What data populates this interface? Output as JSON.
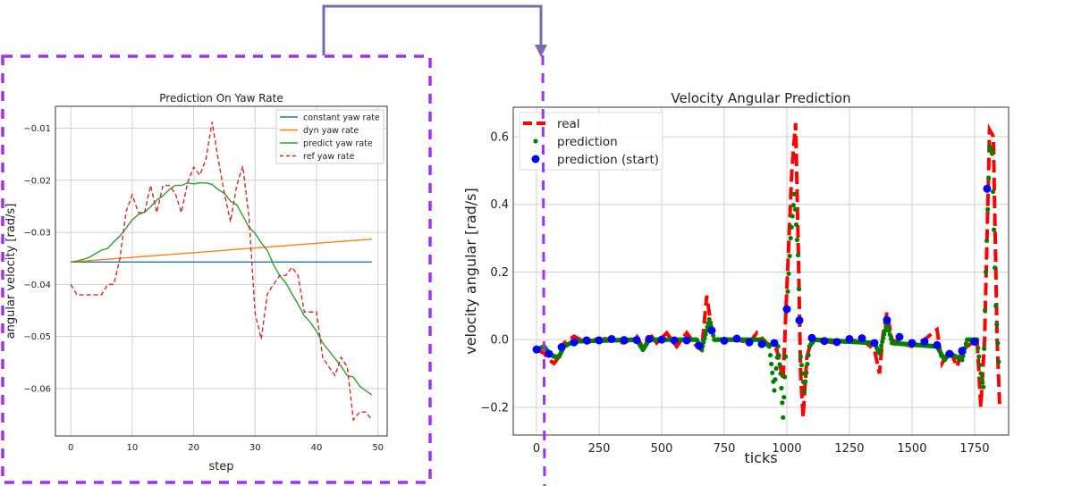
{
  "chart_data": [
    {
      "type": "line",
      "title": "Prediction On Yaw Rate",
      "xlabel": "step",
      "ylabel": "angular velocity [rad/s]",
      "xlim": [
        -2.5,
        51.5
      ],
      "ylim": [
        -0.0691,
        -0.0058
      ],
      "xticks": [
        0,
        10,
        20,
        30,
        40,
        50
      ],
      "yticks": [
        -0.01,
        -0.02,
        -0.03,
        -0.04,
        -0.05,
        -0.06
      ],
      "ytick_labels": [
        "−0.01",
        "−0.02",
        "−0.03",
        "−0.04",
        "−0.05",
        "−0.06"
      ],
      "grid": true,
      "legend": "top-right",
      "series": [
        {
          "name": "constant yaw rate",
          "color": "#1f77b4",
          "style": "solid",
          "linear": [
            -0.0357,
            -0.0357
          ]
        },
        {
          "name": "dyn yaw rate",
          "color": "#ff7f0e",
          "style": "solid",
          "linear": [
            -0.0357,
            -0.0313
          ]
        },
        {
          "name": "predict yaw rate",
          "color": "#2ca02c",
          "style": "solid",
          "values": [
            -0.0357,
            -0.0355,
            -0.0352,
            -0.0348,
            -0.0341,
            -0.0334,
            -0.0331,
            -0.0318,
            -0.0307,
            -0.0292,
            -0.0276,
            -0.0266,
            -0.0261,
            -0.0251,
            -0.0238,
            -0.023,
            -0.0218,
            -0.021,
            -0.021,
            -0.0205,
            -0.0207,
            -0.0205,
            -0.0205,
            -0.0208,
            -0.0218,
            -0.0225,
            -0.024,
            -0.0247,
            -0.0268,
            -0.029,
            -0.0302,
            -0.032,
            -0.0335,
            -0.0362,
            -0.0383,
            -0.0397,
            -0.0418,
            -0.0438,
            -0.046,
            -0.0473,
            -0.049,
            -0.0512,
            -0.0527,
            -0.0542,
            -0.0557,
            -0.0575,
            -0.0578,
            -0.0595,
            -0.0604,
            -0.0612
          ]
        },
        {
          "name": "ref yaw rate",
          "color": "#d62728",
          "style": "dashed",
          "values": [
            -0.04,
            -0.042,
            -0.042,
            -0.042,
            -0.042,
            -0.042,
            -0.04,
            -0.04,
            -0.035,
            -0.026,
            -0.0228,
            -0.0262,
            -0.0262,
            -0.021,
            -0.0262,
            -0.021,
            -0.021,
            -0.0225,
            -0.0262,
            -0.0205,
            -0.0175,
            -0.019,
            -0.016,
            -0.0088,
            -0.016,
            -0.0225,
            -0.028,
            -0.021,
            -0.0173,
            -0.027,
            -0.0455,
            -0.0505,
            -0.0418,
            -0.04,
            -0.0383,
            -0.0383,
            -0.0367,
            -0.0383,
            -0.0453,
            -0.0453,
            -0.0453,
            -0.054,
            -0.0558,
            -0.0575,
            -0.054,
            -0.0558,
            -0.066,
            -0.0645,
            -0.0645,
            -0.066
          ]
        }
      ]
    },
    {
      "type": "line",
      "title": "Velocity Angular Prediction",
      "xlabel": "ticks",
      "ylabel": "velocity angular [rad/s]",
      "xlim": [
        -93,
        1886
      ],
      "ylim": [
        -0.282,
        0.687
      ],
      "xticks": [
        0,
        250,
        500,
        750,
        1000,
        1250,
        1500,
        1750
      ],
      "yticks": [
        -0.2,
        0.0,
        0.2,
        0.4,
        0.6
      ],
      "ytick_labels": [
        "−0.2",
        "0.0",
        "0.2",
        "0.4",
        "0.6"
      ],
      "grid": true,
      "legend": "top-left",
      "series": [
        {
          "name": "real",
          "color": "#ff0000",
          "style": "dashed",
          "points": [
            [
              0,
              -0.03
            ],
            [
              30,
              -0.04
            ],
            [
              50,
              -0.06
            ],
            [
              70,
              -0.07
            ],
            [
              90,
              -0.05
            ],
            [
              110,
              -0.01
            ],
            [
              150,
              0.01
            ],
            [
              200,
              -0.01
            ],
            [
              250,
              0.005
            ],
            [
              300,
              0
            ],
            [
              350,
              -0.01
            ],
            [
              400,
              0.01
            ],
            [
              430,
              -0.03
            ],
            [
              450,
              0.02
            ],
            [
              480,
              -0.01
            ],
            [
              520,
              0.02
            ],
            [
              560,
              -0.02
            ],
            [
              600,
              0.02
            ],
            [
              640,
              -0.02
            ],
            [
              660,
              -0.03
            ],
            [
              680,
              0.13
            ],
            [
              700,
              0.03
            ],
            [
              720,
              0
            ],
            [
              800,
              0
            ],
            [
              850,
              -0.01
            ],
            [
              880,
              0.02
            ],
            [
              920,
              -0.01
            ],
            [
              960,
              -0.03
            ],
            [
              985,
              -0.12
            ],
            [
              1000,
              0.15
            ],
            [
              1020,
              0.5
            ],
            [
              1035,
              0.64
            ],
            [
              1045,
              0.3
            ],
            [
              1055,
              -0.1
            ],
            [
              1065,
              -0.23
            ],
            [
              1080,
              -0.05
            ],
            [
              1100,
              0
            ],
            [
              1200,
              -0.01
            ],
            [
              1300,
              0
            ],
            [
              1350,
              -0.03
            ],
            [
              1370,
              -0.1
            ],
            [
              1385,
              0.02
            ],
            [
              1400,
              0.08
            ],
            [
              1420,
              0
            ],
            [
              1450,
              -0.01
            ],
            [
              1500,
              -0.02
            ],
            [
              1550,
              0
            ],
            [
              1600,
              0.03
            ],
            [
              1620,
              -0.07
            ],
            [
              1650,
              -0.03
            ],
            [
              1680,
              -0.08
            ],
            [
              1700,
              -0.03
            ],
            [
              1760,
              0
            ],
            [
              1775,
              -0.2
            ],
            [
              1790,
              0
            ],
            [
              1810,
              0.62
            ],
            [
              1825,
              0.6
            ],
            [
              1840,
              0
            ],
            [
              1850,
              -0.19
            ]
          ]
        },
        {
          "name": "prediction",
          "color": "#008000",
          "style": "dots",
          "points": [
            [
              0,
              -0.03
            ],
            [
              30,
              -0.02
            ],
            [
              50,
              -0.04
            ],
            [
              70,
              -0.05
            ],
            [
              90,
              -0.05
            ],
            [
              110,
              -0.02
            ],
            [
              150,
              -0.005
            ],
            [
              400,
              0
            ],
            [
              425,
              -0.03
            ],
            [
              450,
              0
            ],
            [
              640,
              0
            ],
            [
              660,
              -0.03
            ],
            [
              690,
              0.06
            ],
            [
              710,
              0
            ],
            [
              900,
              0
            ],
            [
              930,
              -0.02
            ],
            [
              950,
              -0.15
            ],
            [
              965,
              -0.02
            ],
            [
              975,
              -0.1
            ],
            [
              985,
              -0.23
            ],
            [
              995,
              -0.05
            ],
            [
              1000,
              0.09
            ],
            [
              1015,
              0.3
            ],
            [
              1030,
              0.43
            ],
            [
              1045,
              0.25
            ],
            [
              1055,
              -0.05
            ],
            [
              1070,
              -0.15
            ],
            [
              1090,
              -0.02
            ],
            [
              1110,
              0
            ],
            [
              1350,
              -0.01
            ],
            [
              1370,
              -0.04
            ],
            [
              1400,
              0.05
            ],
            [
              1420,
              -0.01
            ],
            [
              1600,
              -0.02
            ],
            [
              1630,
              -0.06
            ],
            [
              1650,
              -0.04
            ],
            [
              1700,
              -0.06
            ],
            [
              1720,
              0
            ],
            [
              1760,
              0
            ],
            [
              1775,
              -0.1
            ],
            [
              1785,
              -0.14
            ],
            [
              1795,
              0.2
            ],
            [
              1810,
              0.57
            ],
            [
              1820,
              0.55
            ],
            [
              1835,
              0.1
            ],
            [
              1850,
              -0.12
            ]
          ]
        },
        {
          "name": "prediction (start)",
          "color": "#0000ff",
          "style": "markers",
          "x": [
            0,
            50,
            100,
            150,
            200,
            250,
            300,
            350,
            400,
            450,
            500,
            550,
            600,
            650,
            700,
            750,
            800,
            850,
            900,
            950,
            1000,
            1050,
            1100,
            1150,
            1200,
            1250,
            1300,
            1350,
            1400,
            1450,
            1500,
            1550,
            1600,
            1650,
            1700,
            1750,
            1800
          ],
          "y": [
            -0.029,
            -0.042,
            -0.022,
            -0.008,
            -0.002,
            -0.002,
            0.002,
            -0.001,
            -0.001,
            0.002,
            0,
            -0.002,
            -0.002,
            -0.018,
            0.027,
            -0.003,
            0.003,
            -0.008,
            -0.013,
            -0.01,
            0.09,
            0.057,
            0.005,
            -0.004,
            -0.007,
            0.002,
            0.004,
            -0.01,
            0.058,
            0.008,
            -0.01,
            -0.006,
            -0.016,
            -0.042,
            -0.033,
            -0.006,
            0.446
          ]
        }
      ]
    }
  ],
  "annotations": {
    "box_color": "#9b30ff",
    "arrow_color": "#7a68b0"
  }
}
